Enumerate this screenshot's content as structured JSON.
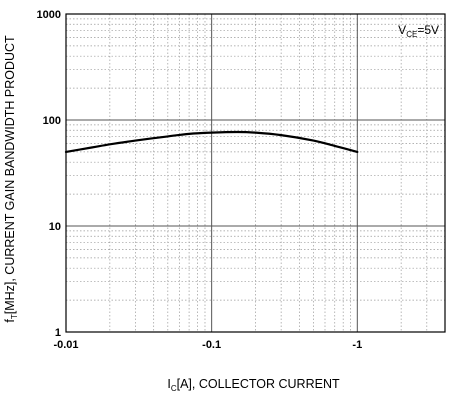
{
  "chart_data": {
    "type": "line",
    "title": "",
    "xlabel": {
      "main": "I",
      "sub": "C",
      "rest": "[A], COLLECTOR CURRENT"
    },
    "ylabel": {
      "main": "f",
      "sub": "T",
      "rest": "[MHz], CURRENT GAIN BANDWIDTH PRODUCT"
    },
    "x_scale": "log",
    "y_scale": "log",
    "xlim": [
      0.01,
      4
    ],
    "ylim": [
      1,
      1000
    ],
    "x_ticks": [
      {
        "value": 0.01,
        "label": "-0.01"
      },
      {
        "value": 0.1,
        "label": "-0.1"
      },
      {
        "value": 1,
        "label": "-1"
      }
    ],
    "y_ticks": [
      {
        "value": 1,
        "label": "1"
      },
      {
        "value": 10,
        "label": "10"
      },
      {
        "value": 100,
        "label": "100"
      },
      {
        "value": 1000,
        "label": "1000"
      }
    ],
    "grid": true,
    "annotation": {
      "main": "V",
      "sub": "CE",
      "rest": "=5V"
    },
    "series": [
      {
        "x": [
          0.01,
          0.015,
          0.02,
          0.03,
          0.05,
          0.07,
          0.1,
          0.15,
          0.2,
          0.3,
          0.5,
          0.7,
          1.0
        ],
        "y": [
          50,
          55,
          59,
          64,
          70,
          74,
          76,
          77,
          76,
          72,
          64,
          57,
          50
        ]
      }
    ]
  }
}
